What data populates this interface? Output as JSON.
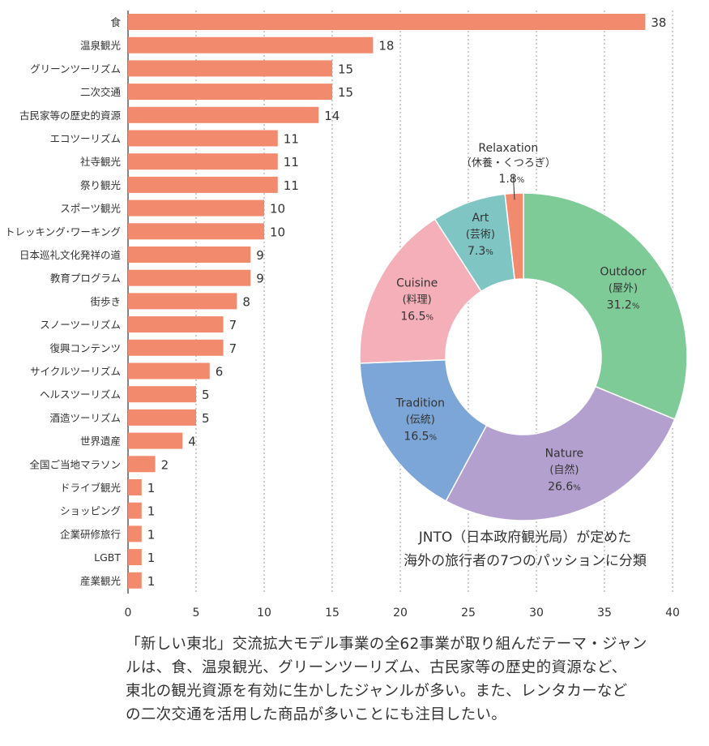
{
  "chart_data": [
    {
      "type": "bar",
      "orientation": "horizontal",
      "categories": [
        "食",
        "温泉観光",
        "グリーンツーリズム",
        "二次交通",
        "古民家等の歴史的資源",
        "エコツーリズム",
        "社寺観光",
        "祭り観光",
        "スポーツ観光",
        "トレッキング･ワーキング",
        "日本巡礼文化発祥の道",
        "教育プログラム",
        "街歩き",
        "スノーツーリズム",
        "復興コンテンツ",
        "サイクルツーリズム",
        "ヘルスツーリズム",
        "酒造ツーリズム",
        "世界遺産",
        "全国ご当地マラソン",
        "ドライブ観光",
        "ショッピング",
        "企業研修旅行",
        "LGBT",
        "産業観光"
      ],
      "values": [
        38,
        18,
        15,
        15,
        14,
        11,
        11,
        11,
        10,
        10,
        9,
        9,
        8,
        7,
        7,
        6,
        5,
        5,
        4,
        2,
        1,
        1,
        1,
        1,
        1
      ],
      "value_labels": [
        "38",
        "18",
        "15",
        "15",
        "14",
        "11",
        "11",
        "11",
        "10",
        "10",
        "9",
        "9",
        "8",
        "7",
        "7",
        "6",
        "5",
        "5",
        "4",
        "2",
        "1",
        "1",
        "1",
        "1",
        "1"
      ],
      "xlim": [
        0,
        40
      ],
      "x_ticks": [
        "0",
        "5",
        "10",
        "15",
        "20",
        "25",
        "30",
        "35",
        "40"
      ],
      "grid": "vertical dotted",
      "bar_color": "#f28b6e"
    },
    {
      "type": "pie",
      "style": "donut",
      "title": "JNTO（日本政府観光局）が定めた",
      "subtitle": "海外の旅行者の7つのパッションに分類",
      "slices": [
        {
          "name": "Outdoor",
          "name_ja": "(屋外)",
          "value": 31.2,
          "value_label": "31.2",
          "unit": "%",
          "color": "#7ecb98"
        },
        {
          "name": "Nature",
          "name_ja": "(自然)",
          "value": 26.6,
          "value_label": "26.6",
          "unit": "%",
          "color": "#b3a0cf"
        },
        {
          "name": "Tradition",
          "name_ja": "(伝統)",
          "value": 16.5,
          "value_label": "16.5",
          "unit": "%",
          "color": "#7ba6d7"
        },
        {
          "name": "Cuisine",
          "name_ja": "(料理)",
          "value": 16.5,
          "value_label": "16.5",
          "unit": "%",
          "color": "#f5afb9"
        },
        {
          "name": "Art",
          "name_ja": "(芸術)",
          "value": 7.3,
          "value_label": "7.3",
          "unit": "%",
          "color": "#7ec5c4"
        },
        {
          "name": "Relaxation",
          "name_ja": "（休養・くつろぎ）",
          "value": 1.8,
          "value_label": "1.8",
          "unit": "%",
          "color": "#f28b6e"
        }
      ]
    }
  ],
  "caption": {
    "line1": "「新しい東北」交流拡大モデル事業の全62事業が取り組んだテーマ・ジャン",
    "line2": "ルは、食、温泉観光、グリーンツーリズム、古民家等の歴史的資源など、",
    "line3": "東北の観光資源を有効に生かしたジャンルが多い。また、レンタカーなど",
    "line4": "の二次交通を活用した商品が多いことにも注目したい。"
  }
}
